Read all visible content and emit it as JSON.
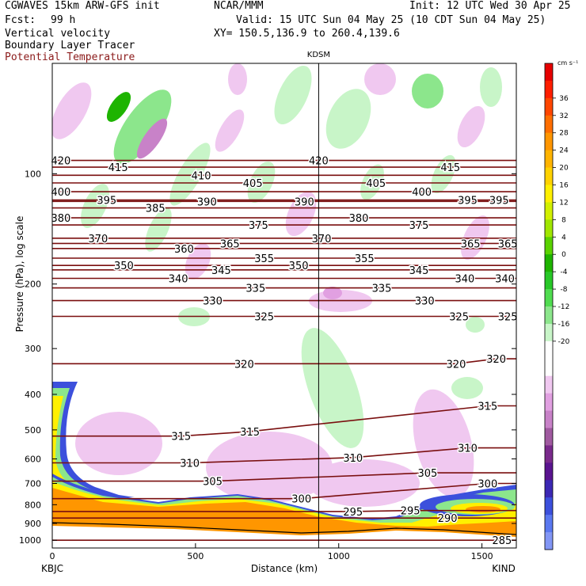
{
  "header": {
    "model": "CGWAVES 15km ARW-GFS init",
    "org": "NCAR/MMM",
    "init": "Init: 12 UTC Wed 30 Apr 25",
    "fcst_label": "Fcst:",
    "fcst_value": "99 h",
    "valid": "Valid: 15 UTC Sun 04 May 25 (10 CDT Sun 04 May 25)",
    "field1": "Vertical velocity",
    "field2": "Boundary Layer Tracer",
    "field3": "Potential Temperature",
    "xy": "XY= 150.5,136.9 to 260.4,139.6"
  },
  "colors": {
    "theta_contour": "#7a0f0f",
    "title_red": "#8b1a1a",
    "terrain": "#f08c00"
  },
  "chart_data": {
    "type": "heatmap",
    "station_marker": "KDSM",
    "station_marker_km": 930,
    "xlabel": "Distance (km)",
    "ylabel": "Pressure (hPa), log scale",
    "x_left_label": "KBJC",
    "x_right_label": "KIND",
    "xlim": [
      0,
      1620
    ],
    "ylim": [
      1050,
      50
    ],
    "x_ticks": [
      0,
      500,
      1000,
      1500
    ],
    "y_ticks": [
      100,
      200,
      300,
      400,
      500,
      600,
      700,
      800,
      900,
      1000
    ],
    "y_scale": "log",
    "colorbar": {
      "unit": "cm s⁻¹",
      "ticks": [
        "36",
        "32",
        "28",
        "24",
        "20",
        "16",
        "12",
        "8",
        "4",
        "0",
        "-4",
        "-8",
        "-12",
        "-16",
        "-20"
      ],
      "colors": [
        "#e60000",
        "#ff1e00",
        "#ff4600",
        "#ff6e00",
        "#ff9600",
        "#ffb400",
        "#ffd200",
        "#fff000",
        "#d2f000",
        "#a0e600",
        "#5ad200",
        "#1eb400",
        "#28c828",
        "#50dc50",
        "#8ce68c",
        "#c8f5c8",
        "#ffffff",
        "#ffffff",
        "#f0c8f0",
        "#e1a0e1",
        "#c882c8",
        "#a05aa0",
        "#7a2a8c",
        "#5a1490",
        "#3c28b4",
        "#3c50dc",
        "#5a78f0",
        "#8296f5"
      ]
    },
    "theta_contours": [
      {
        "label": "420",
        "x_km": [
          30,
          930
        ],
        "p": [
          92,
          92
        ]
      },
      {
        "label": "415",
        "x_km": [
          230,
          1390
        ],
        "p": [
          96,
          96
        ]
      },
      {
        "label": "410",
        "x_km": [
          520
        ],
        "p": [
          101
        ]
      },
      {
        "label": "405",
        "x_km": [
          700,
          1130
        ],
        "p": [
          106,
          106
        ]
      },
      {
        "label": "400",
        "x_km": [
          30,
          1290
        ],
        "p": [
          112,
          112
        ]
      },
      {
        "label": "395",
        "x_km": [
          190,
          1450,
          1560
        ],
        "p": [
          118,
          118,
          118
        ]
      },
      {
        "label": "390",
        "x_km": [
          540,
          880
        ],
        "p": [
          119,
          119
        ]
      },
      {
        "label": "385",
        "x_km": [
          360
        ],
        "p": [
          124
        ]
      },
      {
        "label": "380",
        "x_km": [
          30,
          1070
        ],
        "p": [
          132,
          132
        ]
      },
      {
        "label": "375",
        "x_km": [
          720,
          1280
        ],
        "p": [
          138,
          138
        ]
      },
      {
        "label": "370",
        "x_km": [
          160,
          940
        ],
        "p": [
          150,
          150
        ]
      },
      {
        "label": "365",
        "x_km": [
          620,
          1460,
          1590
        ],
        "p": [
          155,
          155,
          155
        ]
      },
      {
        "label": "360",
        "x_km": [
          460
        ],
        "p": [
          160
        ]
      },
      {
        "label": "355",
        "x_km": [
          740,
          1090
        ],
        "p": [
          170,
          170
        ]
      },
      {
        "label": "350",
        "x_km": [
          250,
          860
        ],
        "p": [
          178,
          178
        ]
      },
      {
        "label": "345",
        "x_km": [
          590,
          1280
        ],
        "p": [
          183,
          183
        ]
      },
      {
        "label": "340",
        "x_km": [
          440,
          1440,
          1580
        ],
        "p": [
          193,
          193,
          193
        ]
      },
      {
        "label": "335",
        "x_km": [
          710,
          1150
        ],
        "p": [
          205,
          205
        ]
      },
      {
        "label": "330",
        "x_km": [
          560,
          1300
        ],
        "p": [
          222,
          222
        ]
      },
      {
        "label": "325",
        "x_km": [
          740,
          1420,
          1590
        ],
        "p": [
          245,
          245,
          245
        ]
      },
      {
        "label": "320",
        "x_km": [
          670,
          1410,
          1550
        ],
        "p": [
          330,
          330,
          320
        ]
      },
      {
        "label": "315",
        "x_km": [
          450,
          690,
          1520
        ],
        "p": [
          520,
          505,
          430
        ]
      },
      {
        "label": "310",
        "x_km": [
          480,
          1050,
          1450
        ],
        "p": [
          615,
          595,
          560
        ]
      },
      {
        "label": "305",
        "x_km": [
          560,
          1310
        ],
        "p": [
          690,
          655
        ]
      },
      {
        "label": "300",
        "x_km": [
          870,
          1520
        ],
        "p": [
          770,
          700
        ]
      },
      {
        "label": "295",
        "x_km": [
          1050,
          1250
        ],
        "p": [
          835,
          830
        ]
      },
      {
        "label": "290",
        "x_km": [
          1380
        ],
        "p": [
          870
        ]
      },
      {
        "label": "285",
        "x_km": [
          1570
        ],
        "p": [
          1000
        ]
      }
    ]
  }
}
